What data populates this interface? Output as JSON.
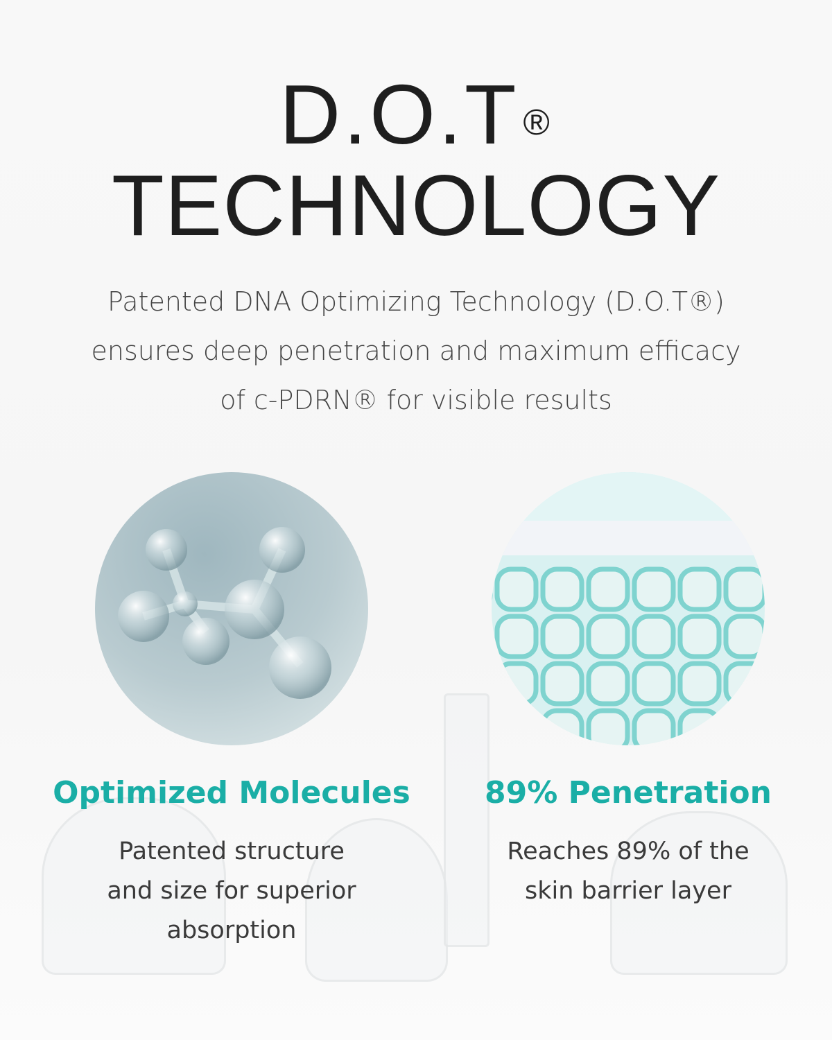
{
  "header": {
    "title_line1": "D.O.T",
    "registered_mark": "®",
    "title_line2": "TECHNOLOGY"
  },
  "intro": {
    "lines": [
      "Patented DNA Optimizing Technology (D.O.T®)",
      "ensures deep penetration and maximum efficacy",
      "of c-PDRN® for visible results"
    ]
  },
  "features": [
    {
      "image": "glass-molecule",
      "heading": "Optimized Molecules",
      "lines": [
        "Patented structure",
        "and size for superior",
        "absorption"
      ]
    },
    {
      "image": "skin-barrier-cell-grid",
      "heading": "89% Penetration",
      "lines": [
        "Reaches 89% of the",
        "skin barrier layer"
      ]
    }
  ],
  "colors": {
    "accent": "#1aaea6",
    "title": "#1e1e1e",
    "body": "#444444",
    "background": "#f7f7f7"
  }
}
